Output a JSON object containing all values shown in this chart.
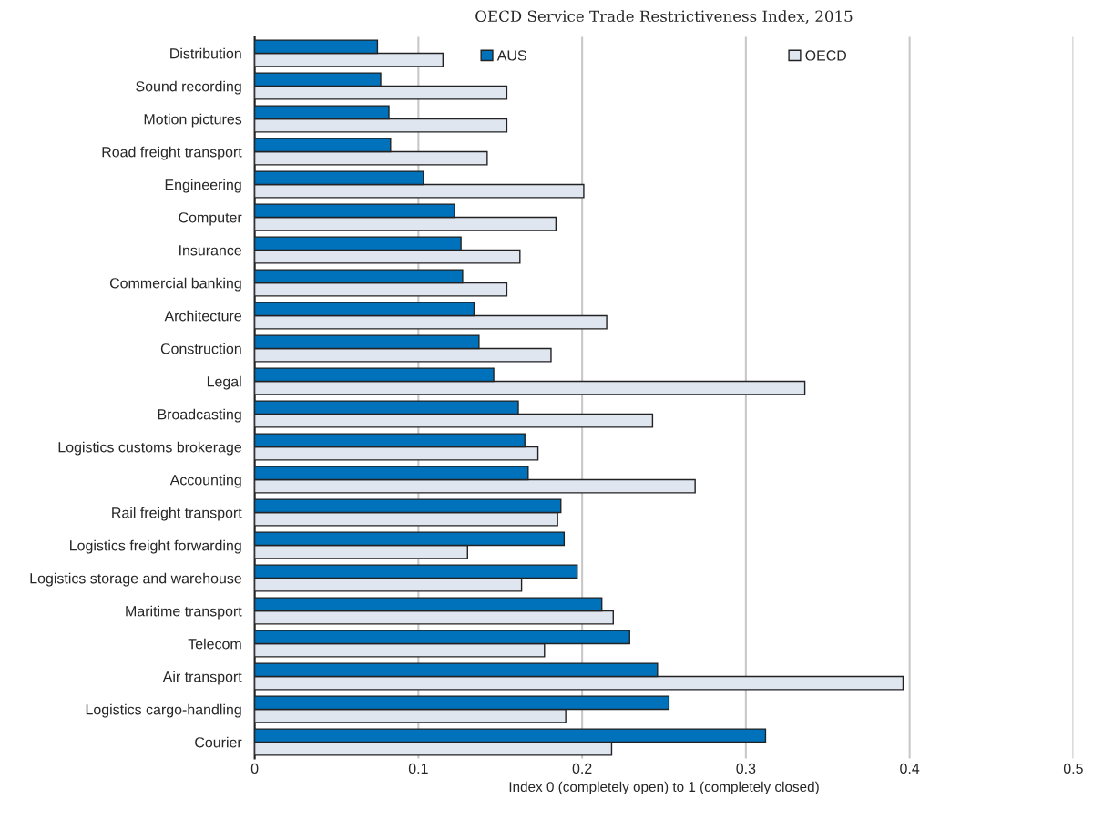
{
  "chart_data": {
    "type": "bar",
    "orientation": "horizontal",
    "subtitle": "OECD Service Trade Restrictiveness Index, 2015",
    "xlabel": "Index 0 (completely open) to 1 (completely closed)",
    "categories": [
      "Distribution",
      "Sound recording",
      "Motion pictures",
      "Road freight transport",
      "Engineering",
      "Computer",
      "Insurance",
      "Commercial banking",
      "Architecture",
      "Construction",
      "Legal",
      "Broadcasting",
      "Logistics customs brokerage",
      "Accounting",
      "Rail freight transport",
      "Logistics freight forwarding",
      "Logistics storage and warehouse",
      "Maritime transport",
      "Telecom",
      "Air transport",
      "Logistics cargo-handling",
      "Courier"
    ],
    "series": [
      {
        "name": "AUS",
        "color": "#0072bc",
        "values": [
          0.075,
          0.077,
          0.082,
          0.083,
          0.103,
          0.122,
          0.126,
          0.127,
          0.134,
          0.137,
          0.146,
          0.161,
          0.165,
          0.167,
          0.187,
          0.189,
          0.197,
          0.212,
          0.229,
          0.246,
          0.253,
          0.312
        ]
      },
      {
        "name": "OECD",
        "color": "#dfe6f0",
        "values": [
          0.115,
          0.154,
          0.154,
          0.142,
          0.201,
          0.184,
          0.162,
          0.154,
          0.215,
          0.181,
          0.336,
          0.243,
          0.173,
          0.269,
          0.185,
          0.13,
          0.163,
          0.219,
          0.177,
          0.396,
          0.19,
          0.218
        ]
      }
    ],
    "xlim": [
      0,
      0.5
    ],
    "xticks": [
      0,
      0.1,
      0.2,
      0.3,
      0.4,
      0.5
    ],
    "grid": "x",
    "legend": "top"
  }
}
